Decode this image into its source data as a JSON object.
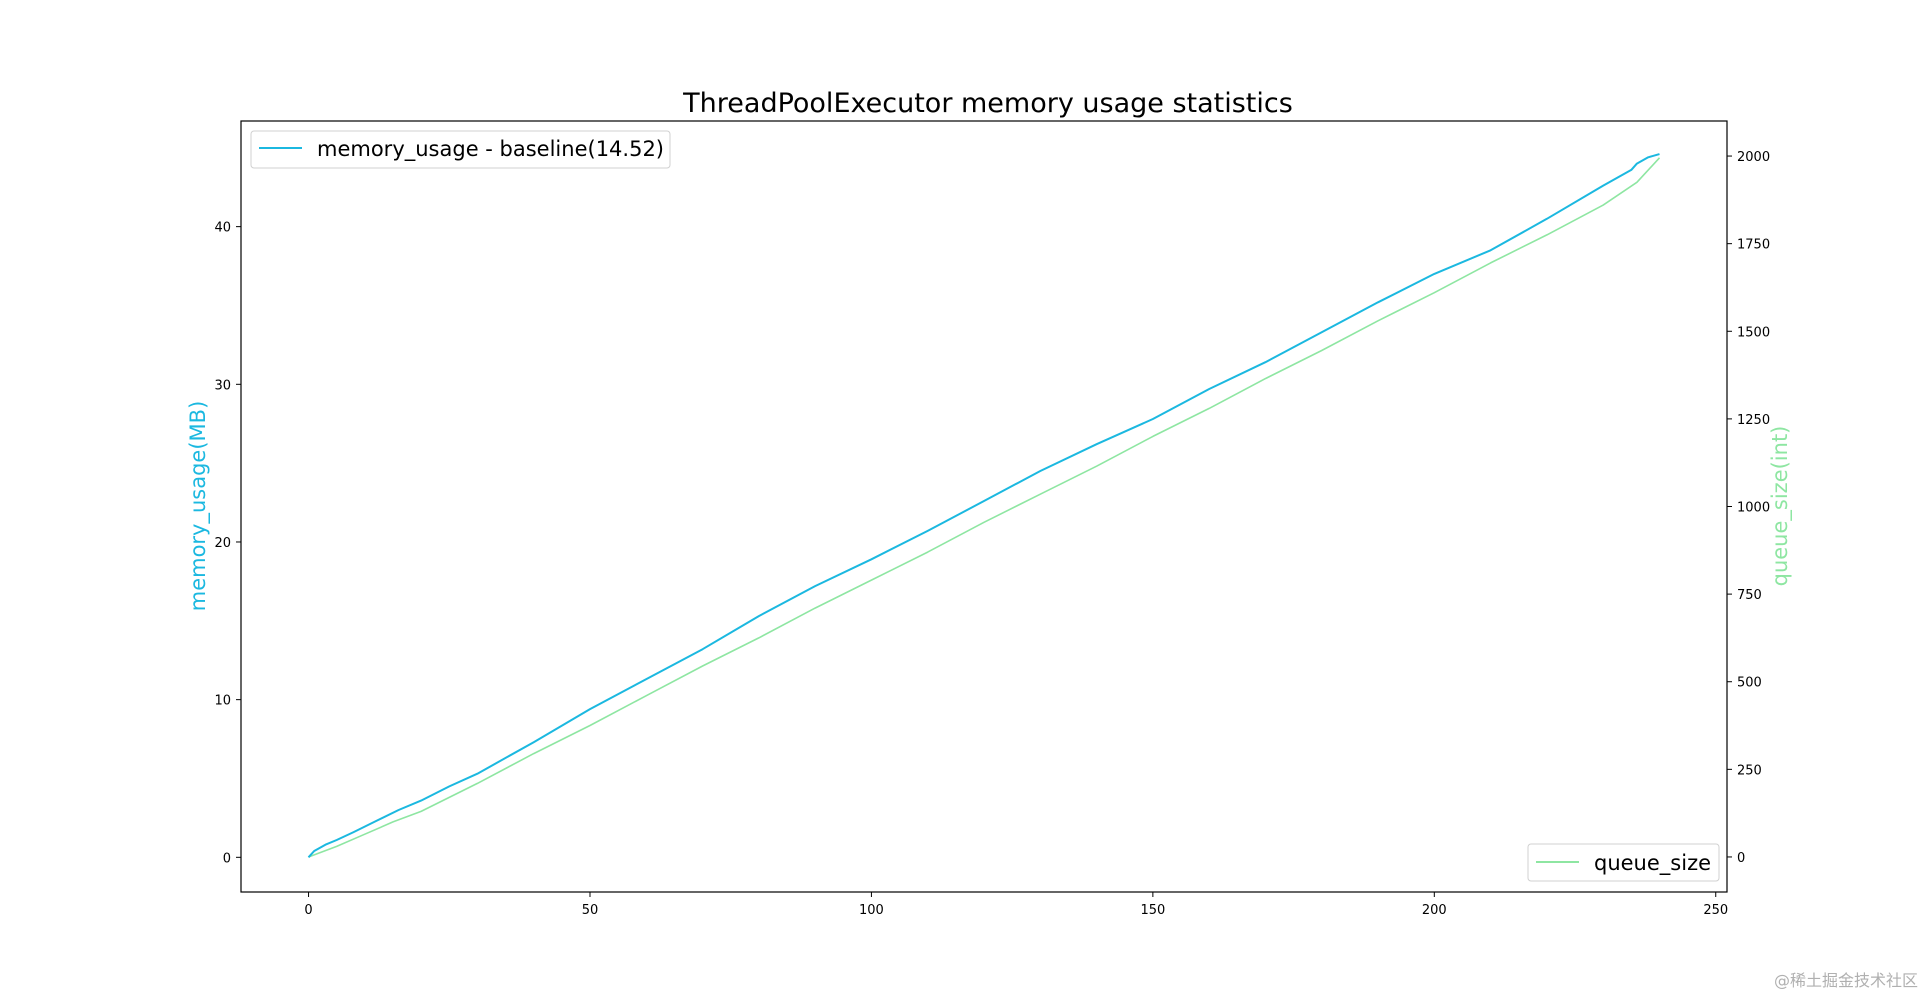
{
  "watermark": "@稀土掘金技术社区",
  "colors": {
    "memory": "#1bb8e0",
    "queue": "#8ee6a2",
    "frame": "#000000"
  },
  "chart_data": {
    "type": "line",
    "title": "ThreadPoolExecutor memory usage statistics",
    "xlim": [
      -12,
      252
    ],
    "x_ticks": [
      0,
      50,
      100,
      150,
      200,
      250
    ],
    "grid": false,
    "y_left": {
      "label": "memory_usage(MB)",
      "lim": [
        -2.2,
        46.7
      ],
      "ticks": [
        0,
        10,
        20,
        30,
        40
      ]
    },
    "y_right": {
      "label": "queue_size(int)",
      "lim": [
        -100,
        2100
      ],
      "ticks": [
        0,
        250,
        500,
        750,
        1000,
        1250,
        1500,
        1750,
        2000
      ]
    },
    "legend_left": {
      "placement": "upper left",
      "entry": "memory_usage - baseline(14.52)"
    },
    "legend_right": {
      "placement": "lower right",
      "entry": "queue_size"
    },
    "series": [
      {
        "name": "memory_usage - baseline(14.52)",
        "axis": "left",
        "x": [
          0,
          1,
          3,
          5,
          8,
          12,
          16,
          20,
          25,
          30,
          40,
          50,
          60,
          70,
          80,
          90,
          100,
          110,
          120,
          130,
          140,
          150,
          160,
          170,
          180,
          190,
          200,
          210,
          220,
          230,
          235,
          236,
          238,
          240
        ],
        "y": [
          0,
          0.4,
          0.8,
          1.1,
          1.6,
          2.3,
          3.0,
          3.6,
          4.5,
          5.3,
          7.3,
          9.4,
          11.3,
          13.2,
          15.3,
          17.2,
          18.9,
          20.7,
          22.6,
          24.5,
          26.2,
          27.8,
          29.7,
          31.4,
          33.3,
          35.2,
          37.0,
          38.5,
          40.5,
          42.6,
          43.6,
          44.0,
          44.4,
          44.6
        ]
      },
      {
        "name": "queue_size",
        "axis": "right",
        "x": [
          0,
          5,
          10,
          15,
          20,
          30,
          40,
          50,
          60,
          70,
          80,
          90,
          100,
          110,
          120,
          130,
          140,
          150,
          160,
          170,
          180,
          190,
          200,
          210,
          220,
          230,
          236,
          240
        ],
        "y": [
          0,
          30,
          65,
          100,
          130,
          210,
          295,
          375,
          460,
          545,
          625,
          710,
          790,
          870,
          955,
          1035,
          1115,
          1200,
          1280,
          1365,
          1445,
          1530,
          1610,
          1695,
          1775,
          1860,
          1925,
          1995
        ]
      }
    ]
  }
}
